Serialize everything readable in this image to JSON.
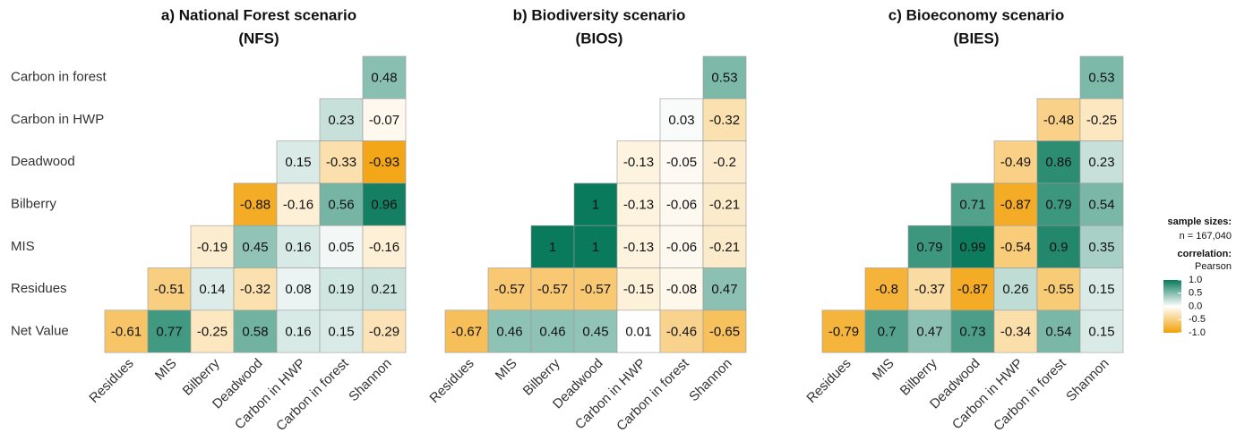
{
  "chart_data": [
    {
      "type": "heatmap",
      "title": "a) National Forest scenario",
      "subtitle": "(NFS)",
      "x_categories": [
        "Residues",
        "MIS",
        "Bilberry",
        "Deadwood",
        "Carbon in HWP",
        "Carbon in forest",
        "Shannon"
      ],
      "y_categories": [
        "Carbon in forest",
        "Carbon in HWP",
        "Deadwood",
        "Bilberry",
        "MIS",
        "Residues",
        "Net Value"
      ],
      "values": [
        [
          null,
          null,
          null,
          null,
          null,
          null,
          0.48
        ],
        [
          null,
          null,
          null,
          null,
          null,
          0.23,
          -0.07
        ],
        [
          null,
          null,
          null,
          null,
          0.15,
          -0.33,
          -0.93
        ],
        [
          null,
          null,
          null,
          -0.88,
          -0.16,
          0.56,
          0.96
        ],
        [
          null,
          null,
          -0.19,
          0.45,
          0.16,
          0.05,
          -0.16
        ],
        [
          null,
          -0.51,
          0.14,
          -0.32,
          0.08,
          0.19,
          0.21
        ],
        [
          -0.61,
          0.77,
          -0.25,
          0.58,
          0.16,
          0.15,
          -0.29
        ]
      ]
    },
    {
      "type": "heatmap",
      "title": "b) Biodiversity scenario",
      "subtitle": "(BIOS)",
      "x_categories": [
        "Residues",
        "MIS",
        "Bilberry",
        "Deadwood",
        "Carbon in HWP",
        "Carbon in forest",
        "Shannon"
      ],
      "values": [
        [
          null,
          null,
          null,
          null,
          null,
          null,
          0.53
        ],
        [
          null,
          null,
          null,
          null,
          null,
          0.03,
          -0.32
        ],
        [
          null,
          null,
          null,
          null,
          -0.13,
          -0.05,
          -0.2
        ],
        [
          null,
          null,
          null,
          1,
          -0.13,
          -0.06,
          -0.21
        ],
        [
          null,
          null,
          1,
          1,
          -0.13,
          -0.06,
          -0.21
        ],
        [
          null,
          -0.57,
          -0.57,
          -0.57,
          -0.15,
          -0.08,
          0.47
        ],
        [
          -0.67,
          0.46,
          0.46,
          0.45,
          0.01,
          -0.46,
          -0.65
        ]
      ]
    },
    {
      "type": "heatmap",
      "title": "c) Bioeconomy scenario",
      "subtitle": "(BIES)",
      "x_categories": [
        "Residues",
        "MIS",
        "Bilberry",
        "Deadwood",
        "Carbon in HWP",
        "Carbon in forest",
        "Shannon"
      ],
      "values": [
        [
          null,
          null,
          null,
          null,
          null,
          null,
          0.53
        ],
        [
          null,
          null,
          null,
          null,
          null,
          -0.48,
          -0.25
        ],
        [
          null,
          null,
          null,
          null,
          -0.49,
          0.86,
          0.23
        ],
        [
          null,
          null,
          null,
          0.71,
          -0.87,
          0.79,
          0.54
        ],
        [
          null,
          null,
          0.79,
          0.99,
          -0.54,
          0.9,
          0.35
        ],
        [
          null,
          -0.8,
          -0.37,
          -0.87,
          0.26,
          -0.55,
          0.15
        ],
        [
          -0.79,
          0.7,
          0.47,
          0.73,
          -0.34,
          0.54,
          0.15
        ]
      ]
    }
  ],
  "legend": {
    "sample_title": "sample sizes:",
    "sample_text": "n = 167,040",
    "correlation_title": "correlation:",
    "correlation_text": "Pearson",
    "clim": [
      -1,
      1
    ],
    "colors": [
      "#f2a007",
      "#ffffff",
      "#0a7a5c"
    ],
    "ticks": [
      {
        "value": 1,
        "label": "1.0"
      },
      0.5,
      {
        "value": 0,
        "label": "0.0"
      },
      -0.5,
      {
        "value": -1,
        "label": "-1.0"
      }
    ]
  }
}
